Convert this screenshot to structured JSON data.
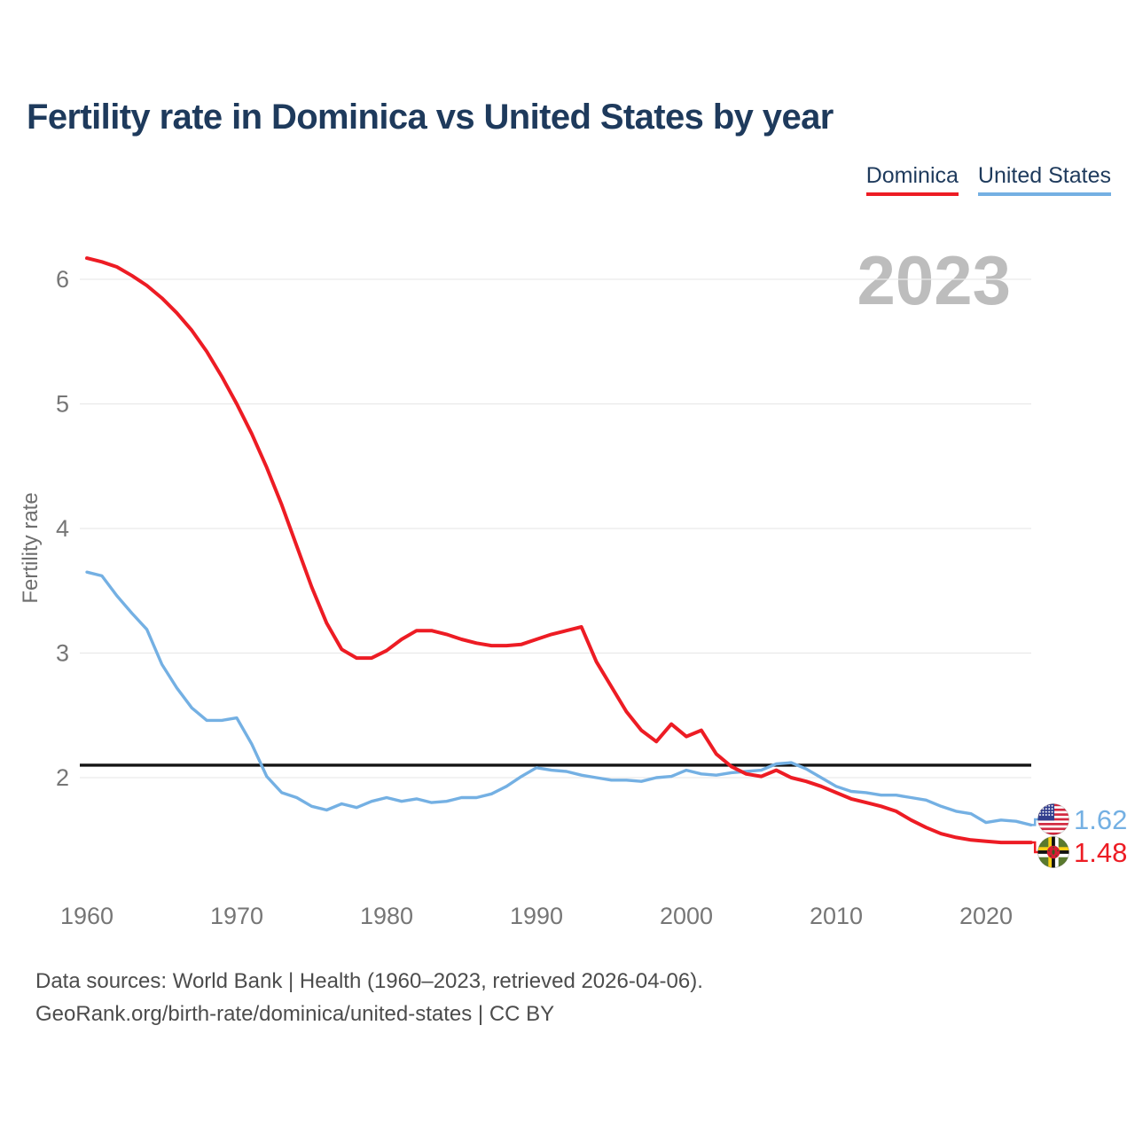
{
  "title": "Fertility rate in Dominica vs United States by year",
  "watermark": "2023",
  "legend": [
    {
      "label": "Dominica",
      "color": "#ed1c24"
    },
    {
      "label": "United States",
      "color": "#74b0e3"
    }
  ],
  "end_labels": [
    {
      "series": "United States",
      "flag": "us-flag",
      "value": "1.62",
      "color": "#74b0e3"
    },
    {
      "series": "Dominica",
      "flag": "dominica-flag",
      "value": "1.48",
      "color": "#ed1c24"
    }
  ],
  "footer": {
    "line1": "Data sources: World Bank | Health (1960–2023, retrieved 2026-04-06).",
    "line2": "GeoRank.org/birth-rate/dominica/united-states | CC BY"
  },
  "chart_data": {
    "type": "line",
    "title": "Fertility rate in Dominica vs United States by year",
    "xlabel": "",
    "ylabel": "Fertility rate",
    "xlim": [
      1960,
      2023
    ],
    "ylim": [
      1.3,
      6.35
    ],
    "x_ticks": [
      1960,
      1970,
      1980,
      1990,
      2000,
      2010,
      2020
    ],
    "y_ticks": [
      2,
      3,
      4,
      5,
      6
    ],
    "grid": "horizontal",
    "legend_position": "top-right",
    "reference_line": {
      "value": 2.1,
      "color": "#141414"
    },
    "years": [
      1960,
      1961,
      1962,
      1963,
      1964,
      1965,
      1966,
      1967,
      1968,
      1969,
      1970,
      1971,
      1972,
      1973,
      1974,
      1975,
      1976,
      1977,
      1978,
      1979,
      1980,
      1981,
      1982,
      1983,
      1984,
      1985,
      1986,
      1987,
      1988,
      1989,
      1990,
      1991,
      1992,
      1993,
      1994,
      1995,
      1996,
      1997,
      1998,
      1999,
      2000,
      2001,
      2002,
      2003,
      2004,
      2005,
      2006,
      2007,
      2008,
      2009,
      2010,
      2011,
      2012,
      2013,
      2014,
      2015,
      2016,
      2017,
      2018,
      2019,
      2020,
      2021,
      2022,
      2023
    ],
    "series": [
      {
        "name": "Dominica",
        "color": "#ed1c24",
        "end_value": 1.48,
        "values": [
          6.17,
          6.14,
          6.1,
          6.03,
          5.95,
          5.85,
          5.73,
          5.59,
          5.42,
          5.22,
          5.0,
          4.76,
          4.49,
          4.19,
          3.86,
          3.53,
          3.24,
          3.03,
          2.96,
          2.96,
          3.02,
          3.11,
          3.18,
          3.18,
          3.15,
          3.11,
          3.08,
          3.06,
          3.06,
          3.07,
          3.11,
          3.15,
          3.18,
          3.21,
          2.93,
          2.73,
          2.53,
          2.38,
          2.29,
          2.43,
          2.33,
          2.38,
          2.19,
          2.09,
          2.03,
          2.01,
          2.06,
          2.0,
          1.97,
          1.93,
          1.88,
          1.83,
          1.8,
          1.77,
          1.73,
          1.66,
          1.6,
          1.55,
          1.52,
          1.5,
          1.49,
          1.48,
          1.48,
          1.48
        ]
      },
      {
        "name": "United States",
        "color": "#74b0e3",
        "end_value": 1.62,
        "values": [
          3.65,
          3.62,
          3.46,
          3.32,
          3.19,
          2.91,
          2.72,
          2.56,
          2.46,
          2.46,
          2.48,
          2.27,
          2.01,
          1.88,
          1.84,
          1.77,
          1.74,
          1.79,
          1.76,
          1.81,
          1.84,
          1.81,
          1.83,
          1.8,
          1.81,
          1.84,
          1.84,
          1.87,
          1.93,
          2.01,
          2.08,
          2.06,
          2.05,
          2.02,
          2.0,
          1.98,
          1.98,
          1.97,
          2.0,
          2.01,
          2.06,
          2.03,
          2.02,
          2.04,
          2.05,
          2.06,
          2.11,
          2.12,
          2.07,
          2.0,
          1.93,
          1.89,
          1.88,
          1.86,
          1.86,
          1.84,
          1.82,
          1.77,
          1.73,
          1.71,
          1.64,
          1.66,
          1.65,
          1.62
        ]
      }
    ]
  }
}
